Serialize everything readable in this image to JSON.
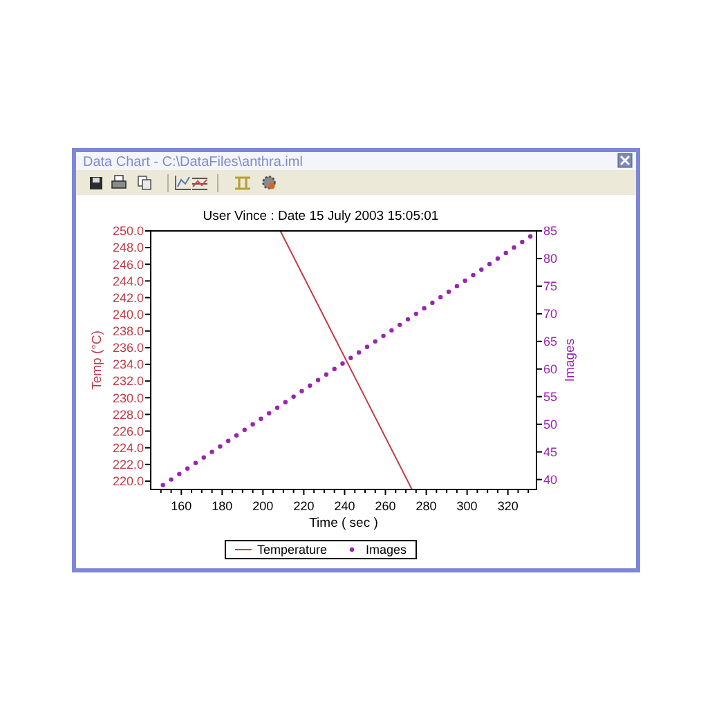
{
  "chart_data": {
    "type": "line",
    "title": "User Vince : Date 15 July 2003 15:05:01",
    "xlabel": "Time ( sec )",
    "ylabel": "Temp (°C)",
    "y2label": "Images",
    "annotations": [
      "Data Chart - C:\\DataFiles\\anthra.iml"
    ],
    "series": [
      {
        "name": "Temperature",
        "color": "#c23b45",
        "x": [
          208.5,
          273
        ],
        "values": [
          250,
          219
        ]
      },
      {
        "name": "Images",
        "type": "scatter",
        "axis": "y2",
        "marker": "circle",
        "color": "#9a24b0",
        "x": [
          151,
          155,
          159,
          163,
          167,
          171,
          175,
          179,
          183,
          187,
          191,
          195,
          199,
          203,
          207,
          211,
          215,
          219,
          223,
          227,
          231,
          235,
          239,
          243,
          247,
          251,
          255,
          259,
          263,
          267,
          271,
          275,
          279,
          283,
          287,
          291,
          295,
          299,
          303,
          307,
          311,
          315,
          319,
          323,
          327,
          331
        ],
        "values": [
          39,
          40,
          41,
          42,
          43,
          44,
          45,
          46,
          47,
          48,
          49,
          50,
          51,
          52,
          53,
          54,
          55,
          56,
          57,
          58,
          59,
          60,
          61,
          62,
          63,
          64,
          65,
          66,
          67,
          68,
          69,
          70,
          71,
          72,
          73,
          74,
          75,
          76,
          77,
          78,
          79,
          80,
          81,
          82,
          83,
          84
        ]
      }
    ],
    "xlim": [
      145,
      334
    ],
    "xticks": [
      {
        "value": 150,
        "label": null
      },
      {
        "value": 155,
        "label": null
      },
      160,
      {
        "value": 165,
        "label": null
      },
      {
        "value": 170,
        "label": null
      },
      {
        "value": 175,
        "label": null
      },
      180,
      {
        "value": 185,
        "label": null
      },
      {
        "value": 190,
        "label": null
      },
      {
        "value": 195,
        "label": null
      },
      200,
      {
        "value": 205,
        "label": null
      },
      {
        "value": 210,
        "label": null
      },
      {
        "value": 215,
        "label": null
      },
      220,
      {
        "value": 225,
        "label": null
      },
      {
        "value": 230,
        "label": null
      },
      {
        "value": 235,
        "label": null
      },
      240,
      {
        "value": 245,
        "label": null
      },
      {
        "value": 250,
        "label": null
      },
      {
        "value": 255,
        "label": null
      },
      260,
      {
        "value": 265,
        "label": null
      },
      {
        "value": 270,
        "label": null
      },
      {
        "value": 275,
        "label": null
      },
      280,
      {
        "value": 285,
        "label": null
      },
      {
        "value": 290,
        "label": null
      },
      {
        "value": 295,
        "label": null
      },
      300,
      {
        "value": 305,
        "label": null
      },
      {
        "value": 310,
        "label": null
      },
      {
        "value": 315,
        "label": null
      },
      320,
      {
        "value": 325,
        "label": null
      },
      {
        "value": 330,
        "label": null
      }
    ],
    "ylim": [
      219,
      250
    ],
    "yticks": [
      {
        "value": 220,
        "label": "220.0"
      },
      {
        "value": 222,
        "label": "222.0"
      },
      {
        "value": 224,
        "label": "224.0"
      },
      {
        "value": 226,
        "label": "226.0"
      },
      {
        "value": 228,
        "label": "228.0"
      },
      {
        "value": 230,
        "label": "230.0"
      },
      {
        "value": 232,
        "label": "232.0"
      },
      {
        "value": 234,
        "label": "234.0"
      },
      {
        "value": 236,
        "label": "236.0"
      },
      {
        "value": 238,
        "label": "238.0"
      },
      {
        "value": 240,
        "label": "240.0"
      },
      {
        "value": 242,
        "label": "242.0"
      },
      {
        "value": 244,
        "label": "244.0"
      },
      {
        "value": 246,
        "label": "246.0"
      },
      {
        "value": 248,
        "label": "248.0"
      },
      {
        "value": 250,
        "label": "250.0"
      }
    ],
    "y2lim": [
      38.2,
      85
    ],
    "y2ticks": [
      40,
      45,
      50,
      55,
      60,
      65,
      70,
      75,
      80,
      85
    ],
    "legend": "bottom"
  }
}
